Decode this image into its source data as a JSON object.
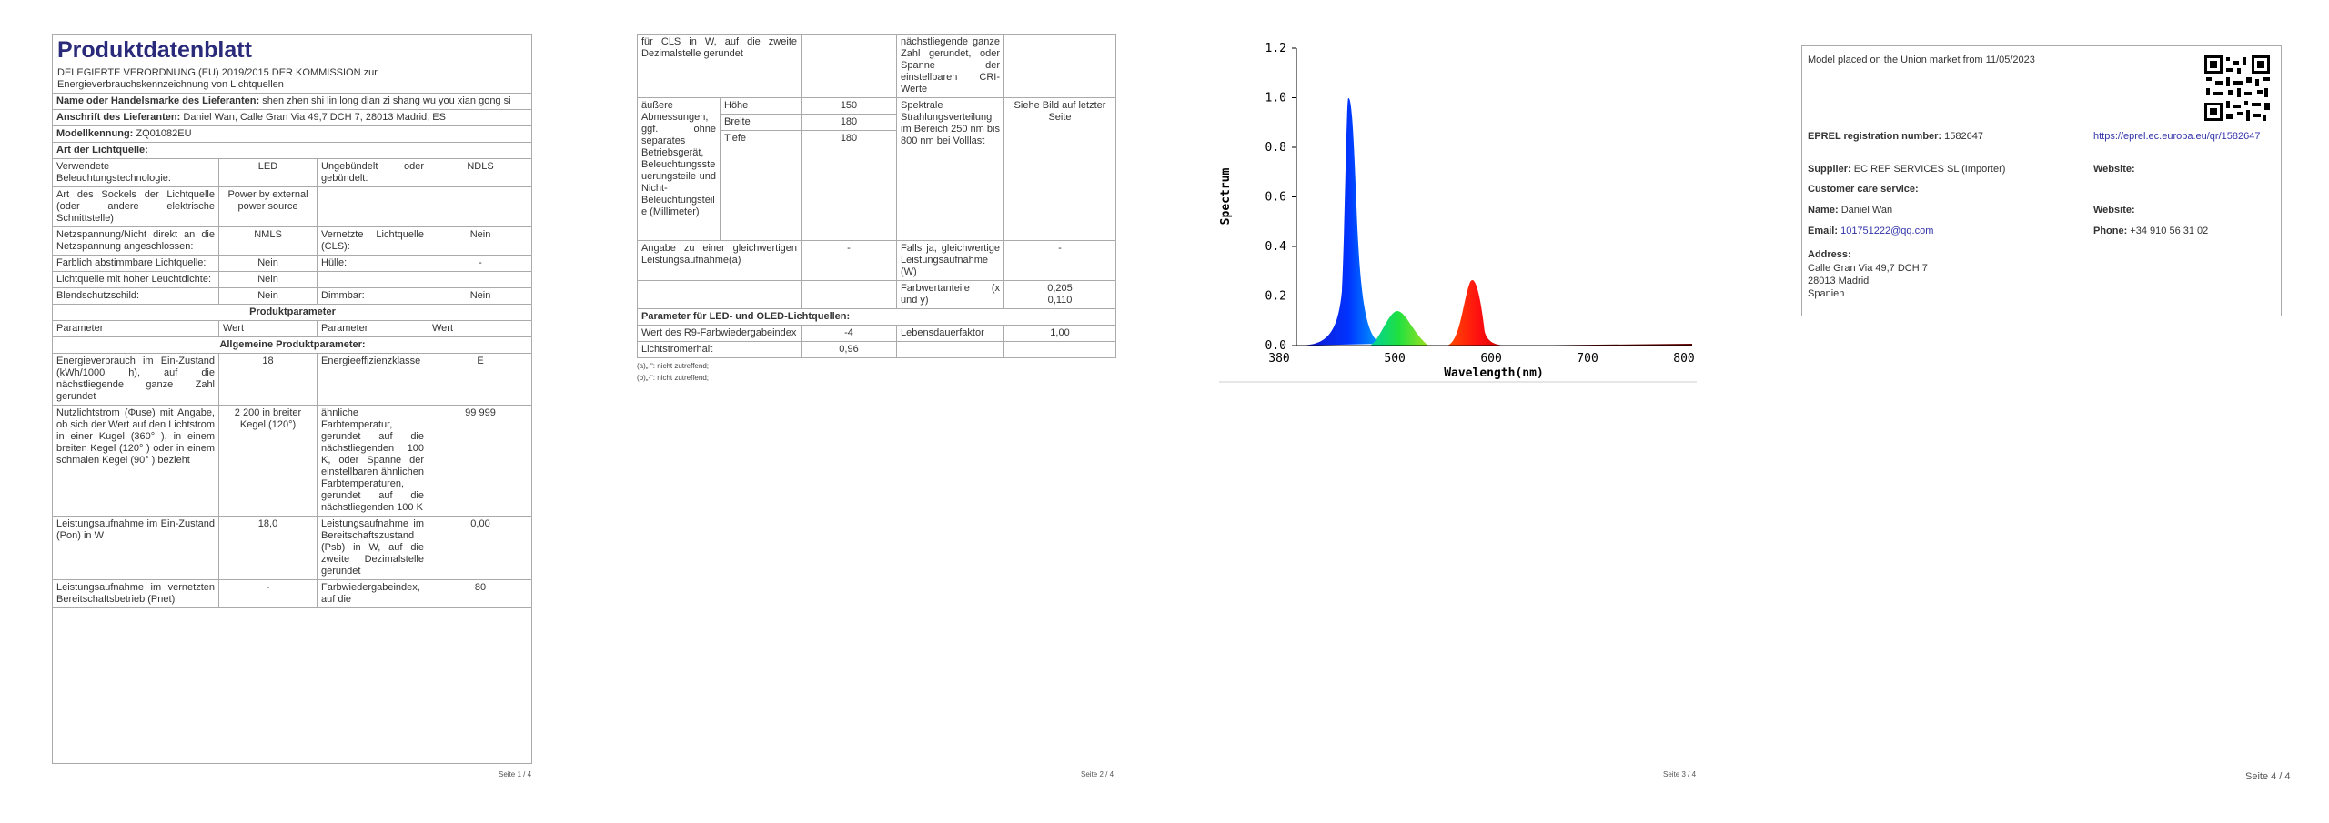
{
  "page1": {
    "title": "Produktdatenblatt",
    "subtitle": "DELEGIERTE VERORDNUNG (EU) 2019/2015 DER KOMMISSION zur Energieverbrauchskennzeichnung von Lichtquellen",
    "supplier_rows": [
      {
        "label": "Name oder Handelsmarke des Lieferanten:",
        "value": "shen zhen shi lin long dian zi shang wu you xian gong si"
      },
      {
        "label": "Anschrift des Lieferanten:",
        "value": "Daniel Wan, Calle Gran Via 49,7 DCH 7, 28013 Madrid, ES"
      },
      {
        "label": "Modellkennung:",
        "value": "ZQ01082EU"
      }
    ],
    "light_source_heading": "Art der Lichtquelle:",
    "light_source_rows": [
      [
        "Verwendete Beleuchtungstechnologie:",
        "LED",
        "Ungebündelt oder gebündelt:",
        "NDLS"
      ],
      [
        "Art des Sockels der Lichtquelle (oder andere elektrische Schnittstelle)",
        "Power by external power source",
        null,
        null
      ],
      [
        "Netzspannung/Nicht direkt an die Netzspannung angeschlossen:",
        "NMLS",
        "Vernetzte Lichtquelle (CLS):",
        "Nein"
      ],
      [
        "Farblich abstimmbare Lichtquelle:",
        "Nein",
        "Hülle:",
        "-"
      ],
      [
        "Lichtquelle mit hoher Leuchtdichte:",
        "Nein",
        null,
        null
      ],
      [
        "Blendschutzschild:",
        "Nein",
        "Dimmbar:",
        "Nein"
      ]
    ],
    "product_parameters_heading": "Produktparameter",
    "column_headers": [
      "Parameter",
      "Wert",
      "Parameter",
      "Wert"
    ],
    "general_parameters_heading": "Allgemeine Produktparameter:",
    "general_rows": [
      [
        "Energieverbrauch im Ein-Zustand (kWh/1000 h), auf die nächstliegende ganze Zahl gerundet",
        "18",
        "Energieeffizienzklasse",
        "E"
      ],
      [
        "Nutzlichtstrom (Φuse) mit Angabe, ob sich der Wert auf den Lichtstrom in einer Kugel (360° ), in einem breiten Kegel (120° ) oder in einem schmalen Kegel (90° ) bezieht",
        "2 200 in breiter Kegel (120°)",
        "ähnliche Farbtemperatur, gerundet auf die nächstliegenden 100 K, oder Spanne der einstellbaren ähnlichen Farbtemperaturen, gerundet auf die nächstliegenden 100 K",
        "99 999"
      ],
      [
        "Leistungsaufnahme im Ein-Zustand (Pon) in W",
        "18,0",
        "Leistungsaufnahme im Bereitschaftszustand (Psb) in W, auf die zweite Dezimalstelle gerundet",
        "0,00"
      ],
      [
        "Leistungsaufnahme im vernetzten Bereitschaftsbetrieb (Pnet)",
        "-",
        "Farbwiedergabeindex, auf die",
        "80"
      ]
    ],
    "footer": "Seite 1 / 4"
  },
  "page2": {
    "rows_before": [
      [
        "für CLS in W, auf die zweite Dezimalstelle gerundet",
        null,
        "nächstliegende ganze Zahl gerundet, oder Spanne der einstellbaren CRI-Werte",
        null
      ]
    ],
    "dimensions": {
      "label": "äußere Abmessungen, ggf. ohne separates Betriebsgerät, Beleuchtungssteuerungsteile und Nicht-Beleuchtungsteile (Millimeter)",
      "items": [
        {
          "name": "Höhe",
          "value": "150"
        },
        {
          "name": "Breite",
          "value": "180"
        },
        {
          "name": "Tiefe",
          "value": "180"
        }
      ],
      "parameter": "Spektrale Strahlungsverteilung im Bereich 250 nm bis 800 nm bei Volllast",
      "value": "Siehe Bild auf letzter Seite"
    },
    "rows_after": [
      [
        "Angabe zu einer gleichwertigen Leistungsaufnahme(a)",
        "-",
        "Falls ja, gleichwertige Leistungsaufnahme (W)",
        "-"
      ],
      [
        null,
        null,
        "Farbwertanteile (x und y)",
        [
          "0,205",
          "0,110"
        ]
      ]
    ],
    "led_heading": "Parameter für LED- und OLED-Lichtquellen:",
    "led_rows": [
      [
        "Wert des R9-Farbwiedergabeindex",
        "-4",
        "Lebensdauerfaktor",
        "1,00"
      ],
      [
        "Lichtstromerhalt",
        "0,96",
        null,
        null
      ]
    ],
    "footnotes": [
      "(a)„-“: nicht zutreffend;",
      "(b)„-“: nicht zutreffend;"
    ],
    "footer": "Seite 2 / 4"
  },
  "page3": {
    "spectrum": {
      "ylabel": "Spectrum",
      "xlabel": "Wavelength(nm)",
      "yticks": [
        {
          "value": 0,
          "label": "0.0"
        },
        {
          "value": 0.2,
          "label": "0.2"
        },
        {
          "value": 0.4,
          "label": "0.4"
        },
        {
          "value": 0.6,
          "label": "0.6"
        },
        {
          "value": 0.8,
          "label": "0.8"
        },
        {
          "value": 1,
          "label": "1.0"
        },
        {
          "value": 1.2,
          "label": "1.2"
        }
      ],
      "xticks": [
        380,
        500,
        600,
        700,
        800
      ]
    },
    "footer": "Seite 3 / 4"
  },
  "page4": {
    "market": "Model placed on the Union market from 11/05/2023",
    "eprel_label": "EPREL registration number:",
    "eprel_value": "1582647",
    "eprel_link": "https://eprel.ec.europa.eu/qr/1582647",
    "supplier_label": "Supplier:",
    "supplier_value": "EC REP SERVICES SL (Importer)",
    "website_label": "Website:",
    "customer_care": "Customer care service:",
    "name_label": "Name:",
    "name_value": "Daniel Wan",
    "website2_label": "Website:",
    "email_label": "Email:",
    "email_value": "101751222@qq.com",
    "phone_label": "Phone:",
    "phone_value": "+34 910 56 31 02",
    "address_label": "Address:",
    "address_lines": [
      "Calle Gran Via 49,7 DCH 7",
      "28013 Madrid",
      "Spanien"
    ],
    "footer": "Seite 4 / 4"
  }
}
